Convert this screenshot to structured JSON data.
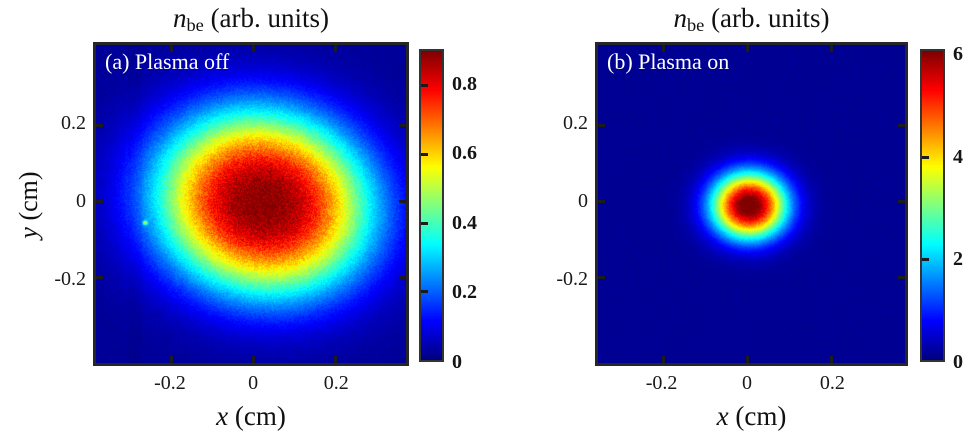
{
  "figure": {
    "background_color": "#ffffff",
    "text_color": "#1a1a1a",
    "border_color": "#262626"
  },
  "chart_data": [
    {
      "type": "heatmap",
      "panel_label": "(a) Plasma off",
      "title": {
        "variable": "n",
        "subscript": "be",
        "units": " (arb. units)"
      },
      "xlabel": {
        "variable": "x",
        "units": " (cm)"
      },
      "ylabel": {
        "variable": "y",
        "units": " (cm)"
      },
      "xlim": [
        -0.385,
        0.375
      ],
      "ylim": [
        -0.425,
        0.41
      ],
      "xticks": [
        {
          "value": -0.2,
          "label": "-0.2"
        },
        {
          "value": 0,
          "label": "0"
        },
        {
          "value": 0.2,
          "label": "0.2"
        }
      ],
      "yticks": [
        {
          "value": 0.2,
          "label": "0.2"
        },
        {
          "value": 0,
          "label": "0"
        },
        {
          "value": -0.2,
          "label": "-0.2"
        }
      ],
      "colormap": "jet",
      "grid": false,
      "colorbar": {
        "min": 0,
        "max": 0.9,
        "ticks": [
          {
            "value": 0.8,
            "label": "0.8"
          },
          {
            "value": 0.6,
            "label": "0.6"
          },
          {
            "value": 0.4,
            "label": "0.4"
          },
          {
            "value": 0.2,
            "label": "0.2"
          },
          {
            "value": 0,
            "label": "0"
          }
        ]
      },
      "field": {
        "background_level": 0.022,
        "blobs": [
          {
            "x0": 0.025,
            "y0": -0.005,
            "sigma_x": 0.185,
            "sigma_y": 0.165,
            "rotation_deg": -20,
            "amplitude": 0.88,
            "super_gaussian_power": 1.25
          }
        ],
        "noise_abs": 0.011,
        "noise_rel": 0.055,
        "artifacts": [
          {
            "kind": "vertical-stripe",
            "x": -0.29,
            "width": 0.035,
            "delta": -0.007
          },
          {
            "kind": "speck",
            "x": -0.265,
            "y": -0.057,
            "amplitude": 0.3,
            "sigma": 0.004
          }
        ]
      }
    },
    {
      "type": "heatmap",
      "panel_label": "(b) Plasma on",
      "title": {
        "variable": "n",
        "subscript": "be",
        "units": " (arb. units)"
      },
      "xlabel": {
        "variable": "x",
        "units": " (cm)"
      },
      "ylabel": null,
      "xlim": [
        -0.356,
        0.377
      ],
      "ylim": [
        -0.425,
        0.41
      ],
      "xticks": [
        {
          "value": -0.2,
          "label": "-0.2"
        },
        {
          "value": 0,
          "label": "0"
        },
        {
          "value": 0.2,
          "label": "0.2"
        }
      ],
      "yticks": [
        {
          "value": 0.2,
          "label": "0.2"
        },
        {
          "value": 0,
          "label": "0"
        },
        {
          "value": -0.2,
          "label": "-0.2"
        }
      ],
      "colormap": "jet",
      "grid": false,
      "colorbar": {
        "min": 0,
        "max": 6.1,
        "ticks": [
          {
            "value": 6,
            "label": "6"
          },
          {
            "value": 4,
            "label": "4"
          },
          {
            "value": 2,
            "label": "2"
          },
          {
            "value": 0,
            "label": "0"
          }
        ]
      },
      "field": {
        "background_level": 0.12,
        "blobs": [
          {
            "x0": 0.005,
            "y0": -0.012,
            "sigma_x": 0.062,
            "sigma_y": 0.06,
            "rotation_deg": 0,
            "amplitude": 6.25,
            "super_gaussian_power": 1.1
          }
        ],
        "noise_abs": 0.055,
        "noise_rel": 0.03,
        "artifacts": []
      }
    }
  ]
}
